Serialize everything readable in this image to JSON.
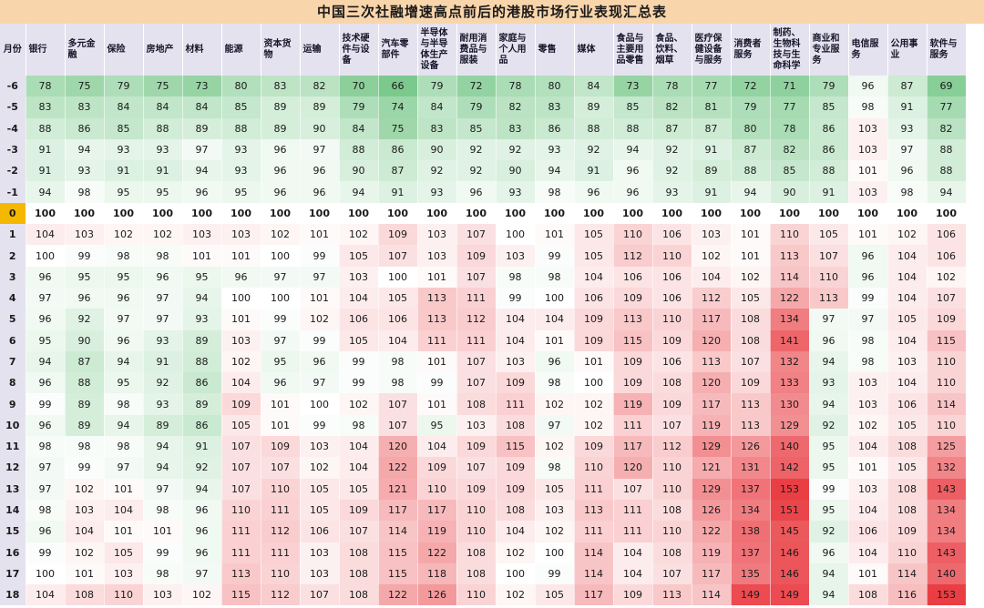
{
  "title": "中国三次社融增速高点前后的港股市场行业表现汇总表",
  "chart_data": {
    "type": "table",
    "month_header": "月份",
    "columns": [
      "银行",
      "多元金融",
      "保险",
      "房地产",
      "材料",
      "能源",
      "资本货物",
      "运输",
      "技术硬件与设备",
      "汽车零部件",
      "半导体与半导体生产设备",
      "耐用消费品与服装",
      "家庭与个人用品",
      "零售",
      "媒体",
      "食品与主要用品零售",
      "食品、饮料、烟草",
      "医疗保健设备与服务",
      "消费者服务",
      "制药、生物科技与生命科学",
      "商业和专业服务",
      "电信服务",
      "公用事业",
      "软件与服务"
    ],
    "rows": [
      {
        "month": "-6",
        "values": [
          78,
          75,
          79,
          75,
          73,
          80,
          83,
          82,
          70,
          66,
          79,
          72,
          78,
          80,
          84,
          73,
          78,
          77,
          72,
          71,
          79,
          96,
          87,
          69
        ]
      },
      {
        "month": "-5",
        "values": [
          83,
          83,
          84,
          84,
          84,
          85,
          89,
          89,
          79,
          74,
          84,
          79,
          82,
          83,
          89,
          85,
          82,
          81,
          79,
          77,
          85,
          98,
          91,
          77
        ]
      },
      {
        "month": "-4",
        "values": [
          88,
          86,
          85,
          88,
          89,
          88,
          89,
          90,
          84,
          75,
          83,
          85,
          83,
          86,
          88,
          88,
          87,
          87,
          80,
          78,
          86,
          103,
          93,
          82
        ]
      },
      {
        "month": "-3",
        "values": [
          91,
          94,
          93,
          93,
          97,
          93,
          96,
          97,
          88,
          86,
          90,
          92,
          92,
          93,
          92,
          94,
          92,
          91,
          87,
          82,
          86,
          103,
          97,
          88
        ]
      },
      {
        "month": "-2",
        "values": [
          91,
          93,
          91,
          91,
          94,
          93,
          96,
          96,
          90,
          87,
          92,
          92,
          90,
          94,
          91,
          96,
          92,
          89,
          88,
          85,
          88,
          101,
          96,
          88
        ]
      },
      {
        "month": "-1",
        "values": [
          94,
          98,
          95,
          95,
          96,
          95,
          96,
          96,
          94,
          91,
          93,
          96,
          93,
          98,
          96,
          96,
          93,
          91,
          94,
          90,
          91,
          103,
          98,
          94
        ]
      },
      {
        "month": "0",
        "values": [
          100,
          100,
          100,
          100,
          100,
          100,
          100,
          100,
          100,
          100,
          100,
          100,
          100,
          100,
          100,
          100,
          100,
          100,
          100,
          100,
          100,
          100,
          100,
          100
        ]
      },
      {
        "month": "1",
        "values": [
          104,
          103,
          102,
          102,
          103,
          103,
          102,
          101,
          102,
          109,
          103,
          107,
          100,
          101,
          105,
          110,
          106,
          103,
          101,
          110,
          105,
          101,
          102,
          106
        ]
      },
      {
        "month": "2",
        "values": [
          100,
          99,
          98,
          98,
          101,
          101,
          100,
          99,
          105,
          107,
          103,
          109,
          103,
          99,
          105,
          112,
          110,
          102,
          101,
          113,
          107,
          96,
          104,
          106
        ]
      },
      {
        "month": "3",
        "values": [
          96,
          95,
          95,
          96,
          95,
          96,
          97,
          97,
          103,
          100,
          101,
          107,
          98,
          98,
          104,
          106,
          106,
          104,
          102,
          114,
          110,
          96,
          104,
          102
        ]
      },
      {
        "month": "4",
        "values": [
          97,
          96,
          96,
          97,
          94,
          100,
          100,
          101,
          104,
          105,
          113,
          111,
          99,
          100,
          106,
          109,
          106,
          112,
          105,
          122,
          113,
          99,
          104,
          107
        ]
      },
      {
        "month": "5",
        "values": [
          96,
          92,
          97,
          97,
          93,
          101,
          99,
          102,
          106,
          106,
          113,
          112,
          104,
          104,
          109,
          113,
          110,
          117,
          108,
          134,
          97,
          97,
          105,
          109
        ]
      },
      {
        "month": "6",
        "values": [
          95,
          90,
          96,
          93,
          89,
          103,
          97,
          99,
          105,
          104,
          111,
          111,
          104,
          101,
          109,
          115,
          109,
          120,
          108,
          141,
          96,
          98,
          104,
          115
        ]
      },
      {
        "month": "7",
        "values": [
          94,
          87,
          94,
          91,
          88,
          102,
          95,
          96,
          99,
          98,
          101,
          107,
          103,
          96,
          101,
          109,
          106,
          113,
          107,
          132,
          94,
          98,
          103,
          110
        ]
      },
      {
        "month": "8",
        "values": [
          96,
          88,
          95,
          92,
          86,
          104,
          96,
          97,
          99,
          98,
          99,
          107,
          109,
          98,
          100,
          109,
          108,
          120,
          109,
          133,
          93,
          103,
          104,
          110
        ]
      },
      {
        "month": "9",
        "values": [
          99,
          89,
          98,
          93,
          89,
          109,
          101,
          100,
          102,
          107,
          101,
          108,
          111,
          102,
          102,
          119,
          109,
          117,
          113,
          130,
          94,
          103,
          106,
          114
        ]
      },
      {
        "month": "10",
        "values": [
          96,
          89,
          94,
          89,
          86,
          105,
          101,
          99,
          98,
          107,
          95,
          103,
          108,
          97,
          102,
          111,
          107,
          119,
          113,
          129,
          92,
          102,
          105,
          110
        ]
      },
      {
        "month": "11",
        "values": [
          98,
          98,
          98,
          94,
          91,
          107,
          109,
          103,
          104,
          120,
          104,
          109,
          115,
          102,
          109,
          117,
          112,
          129,
          126,
          140,
          95,
          104,
          108,
          125
        ]
      },
      {
        "month": "12",
        "values": [
          97,
          99,
          97,
          94,
          92,
          107,
          107,
          102,
          104,
          122,
          109,
          107,
          109,
          98,
          110,
          120,
          110,
          121,
          131,
          142,
          95,
          101,
          105,
          132
        ]
      },
      {
        "month": "13",
        "values": [
          97,
          102,
          101,
          97,
          94,
          107,
          110,
          105,
          105,
          121,
          110,
          109,
          109,
          105,
          111,
          107,
          110,
          129,
          137,
          153,
          99,
          103,
          108,
          143
        ]
      },
      {
        "month": "14",
        "values": [
          98,
          103,
          104,
          98,
          96,
          110,
          111,
          105,
          109,
          117,
          117,
          110,
          108,
          103,
          113,
          111,
          108,
          126,
          134,
          151,
          95,
          104,
          108,
          134
        ]
      },
      {
        "month": "15",
        "values": [
          96,
          104,
          101,
          101,
          96,
          111,
          112,
          106,
          107,
          114,
          119,
          110,
          104,
          102,
          111,
          111,
          110,
          122,
          138,
          145,
          92,
          106,
          109,
          134
        ]
      },
      {
        "month": "16",
        "values": [
          99,
          102,
          105,
          99,
          96,
          111,
          111,
          103,
          108,
          115,
          122,
          108,
          102,
          100,
          114,
          104,
          108,
          119,
          137,
          146,
          96,
          104,
          110,
          143
        ]
      },
      {
        "month": "17",
        "values": [
          100,
          101,
          103,
          98,
          97,
          113,
          110,
          103,
          108,
          115,
          118,
          108,
          100,
          99,
          114,
          104,
          107,
          117,
          135,
          146,
          94,
          101,
          114,
          140
        ]
      },
      {
        "month": "18",
        "values": [
          104,
          108,
          110,
          103,
          102,
          115,
          112,
          107,
          108,
          122,
          126,
          110,
          102,
          105,
          117,
          109,
          113,
          114,
          149,
          149,
          94,
          108,
          116,
          153
        ]
      }
    ],
    "color_scale": {
      "low_color": "#44b25c",
      "mid_color": "#ffffff",
      "high_color": "#e8343a",
      "low_value": 66,
      "mid_value": 100,
      "high_value": 153
    },
    "base_row_color": "#f5b800",
    "header_bg": "#e5e2ef",
    "title_bg": "#f9d5ab"
  }
}
